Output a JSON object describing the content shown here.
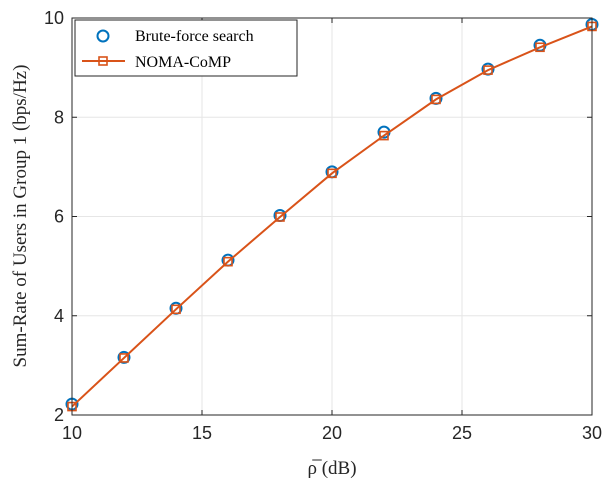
{
  "chart_data": {
    "type": "line",
    "xlabel": "ρ̅ (dB)",
    "ylabel": "Sum-Rate of Users in Group 1 (bps/Hz)",
    "xlim": [
      10,
      30
    ],
    "ylim": [
      2,
      10
    ],
    "x_ticks": [
      "10",
      "15",
      "20",
      "25",
      "30"
    ],
    "y_ticks": [
      "2",
      "4",
      "6",
      "8",
      "10"
    ],
    "grid": true,
    "legend_position": "top-left",
    "x": [
      10,
      12,
      14,
      16,
      18,
      20,
      22,
      24,
      26,
      28,
      30
    ],
    "series": [
      {
        "name": "Brute-force search",
        "marker": "circle",
        "line": false,
        "color": "#0072BD",
        "values": [
          2.22,
          3.16,
          4.15,
          5.12,
          6.02,
          6.9,
          7.7,
          8.38,
          8.97,
          9.45,
          9.87
        ]
      },
      {
        "name": "NOMA-CoMP",
        "marker": "square",
        "line": true,
        "color": "#D95319",
        "values": [
          2.17,
          3.15,
          4.13,
          5.09,
          5.99,
          6.87,
          7.63,
          8.36,
          8.95,
          9.41,
          9.83
        ]
      }
    ]
  }
}
